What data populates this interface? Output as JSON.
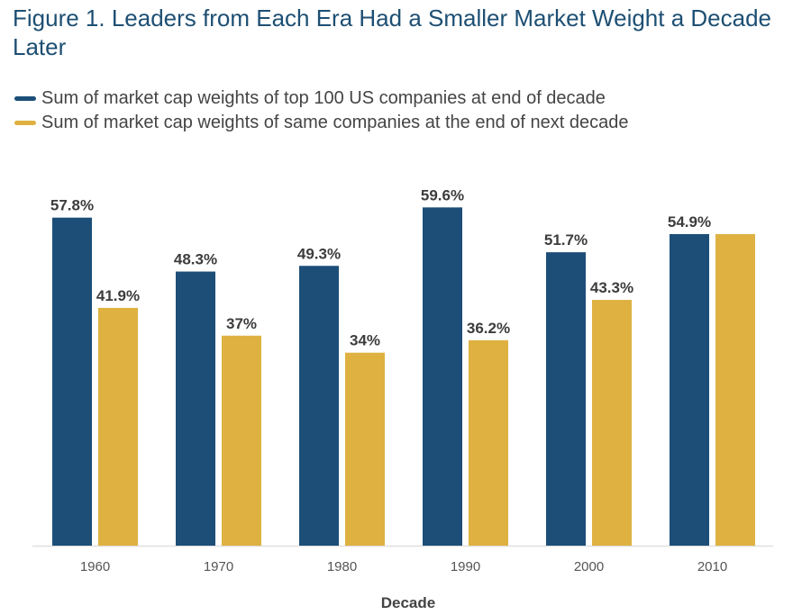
{
  "chart_data": {
    "type": "bar",
    "title": "Figure 1. Leaders from Each Era Had a Smaller Market Weight a Decade Later",
    "xlabel": "Decade",
    "ylabel": "",
    "categories": [
      "1960",
      "1970",
      "1980",
      "1990",
      "2000",
      "2010"
    ],
    "series": [
      {
        "name": "Sum of market cap weights of top 100 US companies at end of decade",
        "values": [
          57.8,
          48.3,
          49.3,
          59.6,
          51.7,
          54.9
        ],
        "labels": [
          "57.8%",
          "48.3%",
          "49.3%",
          "59.6%",
          "51.7%",
          "54.9%"
        ],
        "color": "#1c4e78"
      },
      {
        "name": "Sum of market cap weights of same companies at the end of next decade",
        "values": [
          41.9,
          37,
          34,
          36.2,
          43.3,
          54.9
        ],
        "labels": [
          "41.9%",
          "37%",
          "34%",
          "36.2%",
          "43.3%",
          ""
        ],
        "color": "#deb141"
      }
    ],
    "ylim": [
      0,
      66
    ],
    "grid": false,
    "legend_position": "top-left",
    "axis_color": "#e0e0e0"
  }
}
